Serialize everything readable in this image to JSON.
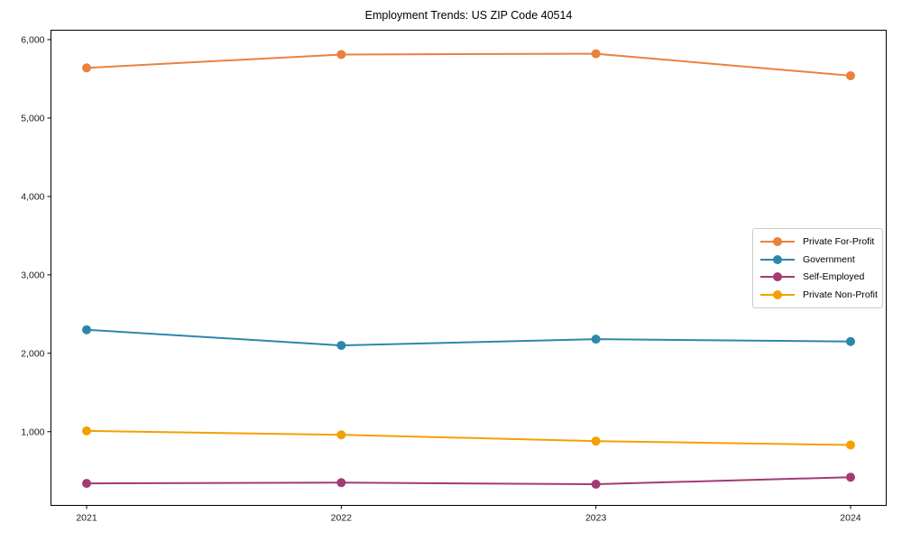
{
  "chart_data": {
    "type": "line",
    "title": "Employment Trends: US ZIP Code 40514",
    "x": [
      2021,
      2022,
      2023,
      2024
    ],
    "x_labels": [
      "2021",
      "2022",
      "2023",
      "2024"
    ],
    "series": [
      {
        "name": "Private For-Profit",
        "color": "#e8823d",
        "values": [
          5640,
          5810,
          5820,
          5540
        ]
      },
      {
        "name": "Government",
        "color": "#2e86ab",
        "values": [
          2300,
          2100,
          2180,
          2150
        ]
      },
      {
        "name": "Self-Employed",
        "color": "#a23b72",
        "values": [
          340,
          350,
          330,
          420
        ]
      },
      {
        "name": "Private Non-Profit",
        "color": "#f4a000",
        "values": [
          1010,
          960,
          880,
          830
        ]
      }
    ],
    "yticks": {
      "values": [
        1000,
        2000,
        3000,
        4000,
        5000,
        6000
      ],
      "labels": [
        "1,000",
        "2,000",
        "3,000",
        "4,000",
        "5,000",
        "6,000"
      ]
    },
    "ylim": [
      60,
      6120
    ],
    "xlim": [
      2020.86,
      2024.14
    ],
    "grid": false,
    "legend_position": "center-right",
    "background_color": "#ffffff",
    "axis_color": "#000000",
    "tick_label_color": "#1a1a1a"
  }
}
